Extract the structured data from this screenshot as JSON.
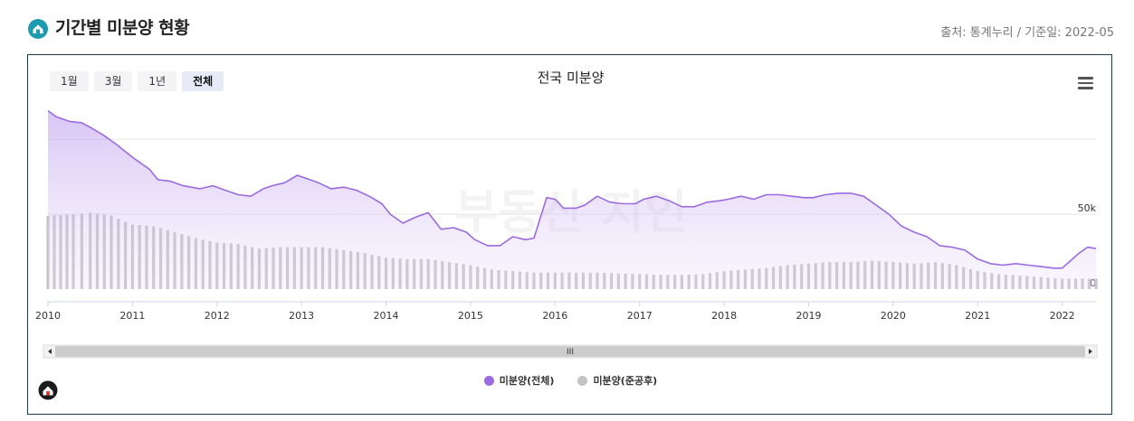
{
  "header": {
    "title": "기간별 미분양 현황",
    "source": "출처: 통계누리 / 기준일: 2022-05"
  },
  "toolbar": {
    "range_buttons": [
      "1월",
      "3월",
      "1년",
      "전체"
    ],
    "active_range": "전체"
  },
  "watermark": "부동산 지인",
  "colors": {
    "total_line": "#9b6ae0",
    "total_fill": "#e9def8",
    "completed_bar": "#c4c4c4",
    "accent": "#1d9bb0"
  },
  "chart_data": {
    "type": "area",
    "title": "전국 미분양",
    "xlabel": "",
    "ylabel": "",
    "x_range": [
      2010.0,
      2022.4
    ],
    "ylim": [
      0,
      120000
    ],
    "y_ticks": [
      0,
      50000,
      100000
    ],
    "y_tick_labels": [
      "0",
      "50k",
      ""
    ],
    "x_tick_labels": [
      "2010",
      "2011",
      "2012",
      "2013",
      "2014",
      "2015",
      "2016",
      "2017",
      "2018",
      "2019",
      "2020",
      "2021",
      "2022"
    ],
    "grid": true,
    "legend_position": "bottom",
    "series": [
      {
        "name": "미분양(전체)",
        "type": "area",
        "x": [
          2010.0,
          2010.1,
          2010.25,
          2010.4,
          2010.5,
          2010.65,
          2010.8,
          2011.0,
          2011.2,
          2011.3,
          2011.45,
          2011.6,
          2011.8,
          2011.95,
          2012.1,
          2012.25,
          2012.4,
          2012.55,
          2012.65,
          2012.8,
          2012.95,
          2013.05,
          2013.2,
          2013.35,
          2013.5,
          2013.65,
          2013.8,
          2013.95,
          2014.05,
          2014.2,
          2014.35,
          2014.5,
          2014.65,
          2014.8,
          2014.95,
          2015.05,
          2015.2,
          2015.35,
          2015.5,
          2015.65,
          2015.75,
          2015.9,
          2016.0,
          2016.1,
          2016.25,
          2016.35,
          2016.5,
          2016.65,
          2016.8,
          2016.95,
          2017.05,
          2017.2,
          2017.35,
          2017.5,
          2017.65,
          2017.8,
          2017.95,
          2018.05,
          2018.2,
          2018.35,
          2018.5,
          2018.65,
          2018.8,
          2018.95,
          2019.05,
          2019.2,
          2019.35,
          2019.5,
          2019.65,
          2019.8,
          2019.95,
          2020.1,
          2020.25,
          2020.4,
          2020.55,
          2020.7,
          2020.85,
          2021.0,
          2021.15,
          2021.3,
          2021.45,
          2021.6,
          2021.75,
          2021.9,
          2022.0,
          2022.1,
          2022.2,
          2022.3,
          2022.4
        ],
        "values": [
          119000,
          115000,
          112000,
          111000,
          108000,
          103000,
          97000,
          88000,
          80000,
          73000,
          72000,
          69000,
          67000,
          69000,
          66000,
          63000,
          62000,
          67000,
          69000,
          71000,
          76000,
          74000,
          71000,
          67000,
          68000,
          66000,
          62000,
          57000,
          50000,
          44000,
          48000,
          51000,
          40000,
          41000,
          38000,
          33000,
          29000,
          29000,
          35000,
          33000,
          34000,
          61000,
          60000,
          54000,
          54000,
          56000,
          62000,
          58000,
          57000,
          57000,
          60000,
          62000,
          59000,
          55000,
          55000,
          58000,
          59000,
          60000,
          62000,
          60000,
          63000,
          63000,
          62000,
          61000,
          61000,
          63000,
          64000,
          64000,
          62000,
          56000,
          50000,
          42000,
          38000,
          35000,
          29000,
          28000,
          26000,
          20000,
          17000,
          16000,
          17000,
          16000,
          15000,
          14000,
          14000,
          19000,
          24000,
          28000,
          27000
        ]
      },
      {
        "name": "미분양(준공후)",
        "type": "bar",
        "x": [
          2010.0,
          2010.3,
          2010.5,
          2010.75,
          2011.0,
          2011.25,
          2011.5,
          2011.75,
          2012.0,
          2012.25,
          2012.5,
          2012.75,
          2013.0,
          2013.25,
          2013.5,
          2013.75,
          2014.0,
          2014.25,
          2014.5,
          2014.75,
          2015.0,
          2015.25,
          2015.5,
          2015.75,
          2016.0,
          2016.25,
          2016.5,
          2016.75,
          2017.0,
          2017.25,
          2017.5,
          2017.75,
          2018.0,
          2018.25,
          2018.5,
          2018.75,
          2019.0,
          2019.25,
          2019.5,
          2019.75,
          2020.0,
          2020.25,
          2020.5,
          2020.75,
          2021.0,
          2021.25,
          2021.5,
          2021.75,
          2022.0,
          2022.4
        ],
        "values": [
          49000,
          50000,
          51000,
          49000,
          43000,
          42000,
          38000,
          34000,
          31000,
          30000,
          27000,
          28000,
          28000,
          28000,
          26000,
          24000,
          21000,
          20000,
          20000,
          18000,
          16000,
          13000,
          12000,
          11000,
          11000,
          11000,
          11000,
          10500,
          10000,
          9500,
          9500,
          10000,
          12000,
          13000,
          14000,
          16000,
          17000,
          18000,
          18000,
          19000,
          18000,
          17000,
          18000,
          16000,
          12000,
          10000,
          9000,
          8000,
          7000,
          7000
        ]
      }
    ],
    "navigator": {
      "handle_label": "III"
    }
  }
}
